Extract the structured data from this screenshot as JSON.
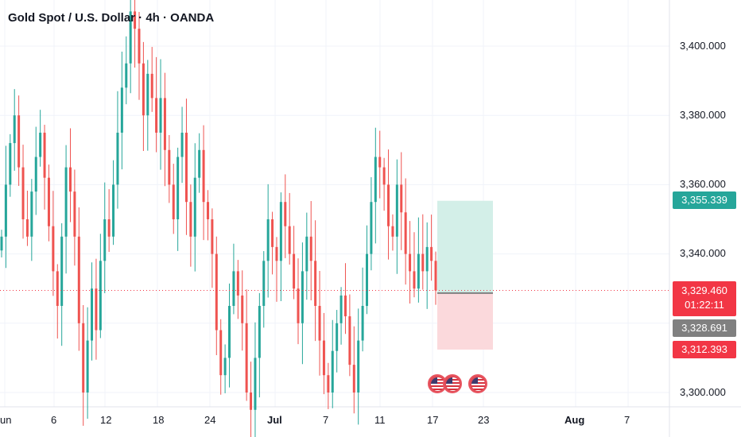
{
  "header": {
    "title": "Gold Spot / U.S. Dollar · 4h · OANDA"
  },
  "price_scale": {
    "ticks": [
      "3,400.000",
      "3,380.000",
      "3,360.000",
      "3,340.000",
      "3,300.000"
    ],
    "target_label": "3,355.339",
    "current_price": "3,329.460",
    "countdown": "01:22:11",
    "entry_label": "3,328.691",
    "stop_label": "3,312.393"
  },
  "time_scale": {
    "labels": [
      "un",
      "6",
      "12",
      "18",
      "24",
      "Jul",
      "7",
      "11",
      "17",
      "23",
      "Aug",
      "7"
    ]
  },
  "colors": {
    "up": "#26a69a",
    "down": "#ef5350",
    "target_zone": "#d3efe8",
    "stop_zone": "#fbd9dc",
    "entry_gray": "#808080"
  },
  "icons": [
    "us-flag-icon",
    "us-flag-icon",
    "us-flag-icon"
  ],
  "chart_data": {
    "type": "candlestick",
    "title": "Gold Spot / U.S. Dollar · 4h · OANDA",
    "xlabel": "",
    "ylabel": "",
    "ylim": [
      3297,
      3410
    ],
    "grid": true,
    "x_tick_labels": [
      "un",
      "6",
      "12",
      "18",
      "24",
      "Jul",
      "7",
      "11",
      "17",
      "23",
      "Aug",
      "7"
    ],
    "y_tick_labels": [
      "3,400.000",
      "3,380.000",
      "3,360.000",
      "3,340.000",
      "3,300.000"
    ],
    "current_price": 3329.46,
    "position": {
      "target": 3355.339,
      "entry": 3328.691,
      "stop": 3312.393
    },
    "closes": [
      3345,
      3360,
      3372,
      3380,
      3365,
      3350,
      3345,
      3358,
      3368,
      3375,
      3362,
      3348,
      3335,
      3325,
      3345,
      3365,
      3358,
      3345,
      3320,
      3300,
      3315,
      3330,
      3318,
      3338,
      3350,
      3345,
      3360,
      3375,
      3388,
      3395,
      3410,
      3405,
      3395,
      3380,
      3392,
      3385,
      3375,
      3385,
      3370,
      3360,
      3350,
      3368,
      3375,
      3355,
      3345,
      3362,
      3370,
      3355,
      3350,
      3340,
      3318,
      3305,
      3310,
      3325,
      3335,
      3328,
      3320,
      3300,
      3295,
      3310,
      3325,
      3338,
      3350,
      3342,
      3338,
      3355,
      3348,
      3340,
      3330,
      3320,
      3335,
      3345,
      3338,
      3325,
      3315,
      3305,
      3300,
      3312,
      3320,
      3328,
      3322,
      3308,
      3300,
      3315,
      3325,
      3340,
      3355,
      3368,
      3365,
      3360,
      3348,
      3345,
      3360,
      3352,
      3340,
      3335,
      3330,
      3340,
      3335,
      3342,
      3338,
      3329.46
    ]
  }
}
